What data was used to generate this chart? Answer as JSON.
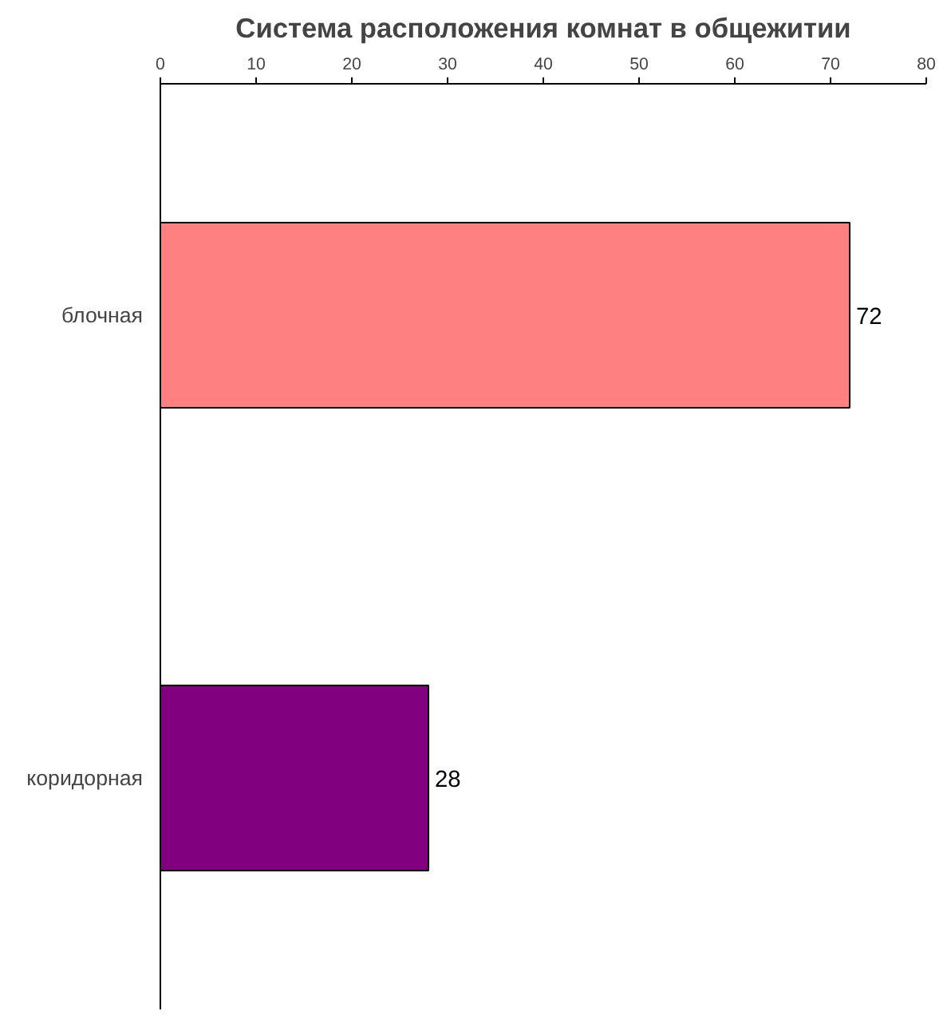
{
  "chart_data": {
    "type": "bar",
    "orientation": "horizontal",
    "title": "Система расположения комнат в общежитии",
    "categories": [
      "блочная",
      "коридорная"
    ],
    "values": [
      72,
      28
    ],
    "colors": [
      "#ff8080",
      "#800080"
    ],
    "xlim": [
      0,
      80
    ],
    "xticks": [
      0,
      10,
      20,
      30,
      40,
      50,
      60,
      70,
      80
    ],
    "data_labels": true,
    "grid": false
  }
}
